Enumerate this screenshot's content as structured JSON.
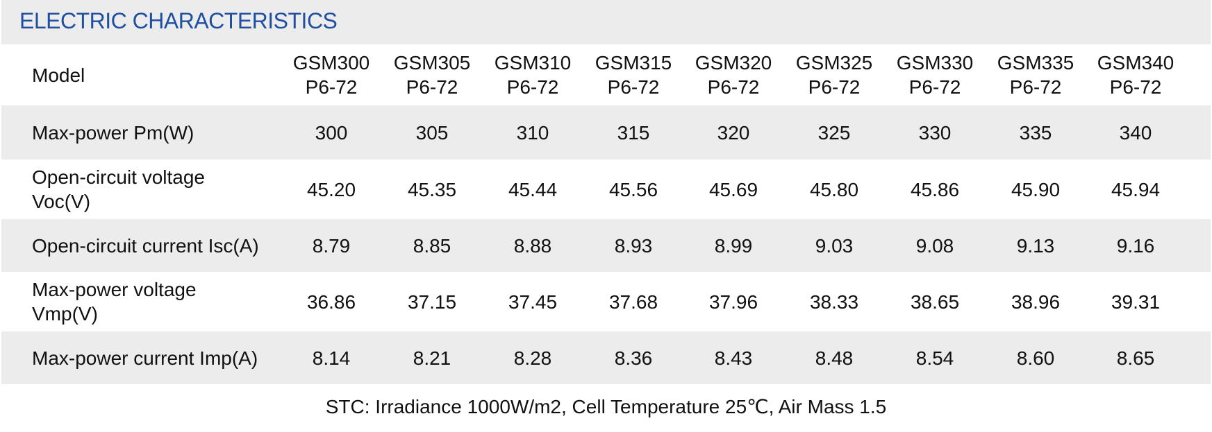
{
  "title": "ELECTRIC CHARACTERISTICS",
  "table": {
    "header": {
      "label": "Model",
      "models": [
        {
          "line1": "GSM300",
          "line2": "P6-72"
        },
        {
          "line1": "GSM305",
          "line2": "P6-72"
        },
        {
          "line1": "GSM310",
          "line2": "P6-72"
        },
        {
          "line1": "GSM315",
          "line2": "P6-72"
        },
        {
          "line1": "GSM320",
          "line2": "P6-72"
        },
        {
          "line1": "GSM325",
          "line2": "P6-72"
        },
        {
          "line1": "GSM330",
          "line2": "P6-72"
        },
        {
          "line1": "GSM335",
          "line2": "P6-72"
        },
        {
          "line1": "GSM340",
          "line2": "P6-72"
        }
      ]
    },
    "rows": [
      {
        "label_line1": "Max-power Pm(W)",
        "label_line2": "",
        "values": [
          "300",
          "305",
          "310",
          "315",
          "320",
          "325",
          "330",
          "335",
          "340"
        ]
      },
      {
        "label_line1": "Open-circuit voltage",
        "label_line2": "Voc(V)",
        "values": [
          "45.20",
          "45.35",
          "45.44",
          "45.56",
          "45.69",
          "45.80",
          "45.86",
          "45.90",
          "45.94"
        ]
      },
      {
        "label_line1": "Open-circuit current Isc(A)",
        "label_line2": "",
        "values": [
          "8.79",
          "8.85",
          "8.88",
          "8.93",
          "8.99",
          "9.03",
          "9.08",
          "9.13",
          "9.16"
        ]
      },
      {
        "label_line1": "Max-power voltage",
        "label_line2": "Vmp(V)",
        "values": [
          "36.86",
          "37.15",
          "37.45",
          "37.68",
          "37.96",
          "38.33",
          "38.65",
          "38.96",
          "39.31"
        ]
      },
      {
        "label_line1": "Max-power current Imp(A)",
        "label_line2": "",
        "values": [
          "8.14",
          "8.21",
          "8.28",
          "8.36",
          "8.43",
          "8.48",
          "8.54",
          "8.60",
          "8.65"
        ]
      }
    ]
  },
  "footnote": "STC: Irradiance 1000W/m2, Cell Temperature 25℃, Air Mass 1.5",
  "colors": {
    "title": "#1f4fa0",
    "shaded_row": "#ececec",
    "text": "#111111"
  }
}
